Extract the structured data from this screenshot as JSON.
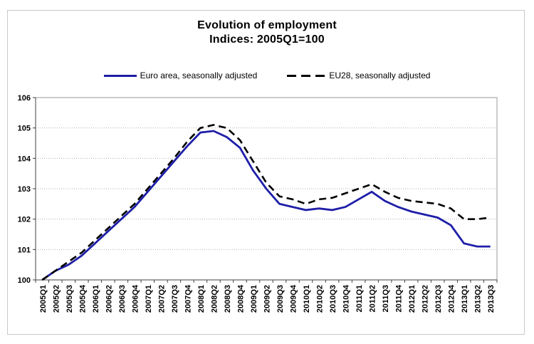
{
  "frame": {
    "border_color": "#c9c9c9",
    "background": "#ffffff"
  },
  "chart_data": {
    "type": "line",
    "title": "Evolution of employment",
    "subtitle": "Indices: 2005Q1=100",
    "xlabel": "",
    "ylabel": "",
    "ylim": [
      100,
      106
    ],
    "yticks": [
      100,
      101,
      102,
      103,
      104,
      105,
      106
    ],
    "grid": true,
    "legend_position": "top",
    "categories": [
      "2005Q1",
      "2005Q2",
      "2005Q3",
      "2005Q4",
      "2006Q1",
      "2006Q2",
      "2006Q3",
      "2006Q4",
      "2007Q1",
      "2007Q2",
      "2007Q3",
      "2007Q4",
      "2008Q1",
      "2008Q2",
      "2008Q3",
      "2008Q4",
      "2009Q1",
      "2009Q2",
      "2009Q3",
      "2009Q4",
      "2010Q1",
      "2010Q2",
      "2010Q3",
      "2010Q4",
      "2011Q1",
      "2011Q2",
      "2011Q3",
      "2011Q4",
      "2012Q1",
      "2012Q2",
      "2012Q3",
      "2012Q4",
      "2013Q1",
      "2013Q2",
      "2013Q3"
    ],
    "series": [
      {
        "name": "Euro area, seasonally adjusted",
        "color": "#1e1ea8",
        "style": "solid",
        "values": [
          100.0,
          100.3,
          100.5,
          100.8,
          101.2,
          101.6,
          102.0,
          102.4,
          102.9,
          103.4,
          103.9,
          104.4,
          104.85,
          104.9,
          104.7,
          104.35,
          103.6,
          103.0,
          102.5,
          102.4,
          102.3,
          102.35,
          102.3,
          102.4,
          102.65,
          102.9,
          102.6,
          102.4,
          102.25,
          102.15,
          102.05,
          101.8,
          101.2,
          101.1,
          101.1
        ]
      },
      {
        "name": "EU28, seasonally adjusted",
        "color": "#000000",
        "style": "dashed",
        "values": [
          100.0,
          100.3,
          100.6,
          100.9,
          101.3,
          101.7,
          102.1,
          102.5,
          103.0,
          103.5,
          104.0,
          104.55,
          105.0,
          105.1,
          105.0,
          104.6,
          103.9,
          103.2,
          102.75,
          102.65,
          102.5,
          102.65,
          102.7,
          102.85,
          103.0,
          103.15,
          102.9,
          102.7,
          102.6,
          102.55,
          102.5,
          102.35,
          102.0,
          102.0,
          102.05
        ]
      }
    ],
    "axis_colors": {
      "gridline": "#b0b0b0",
      "plot_border": "#999999",
      "axis_line": "#404040",
      "tick": "#404040",
      "label": "#000000"
    }
  }
}
